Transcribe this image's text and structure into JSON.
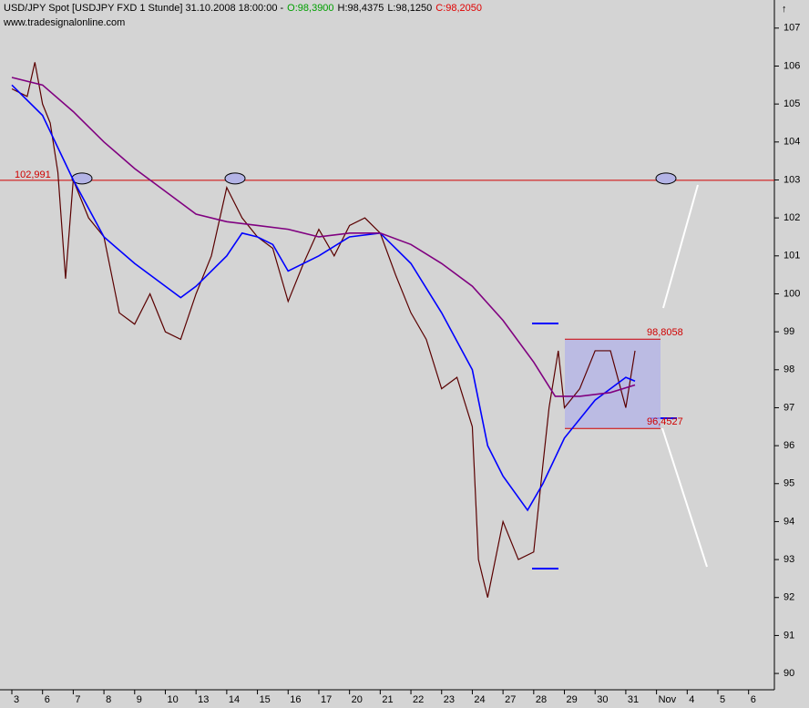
{
  "chart_data": {
    "type": "line",
    "header": {
      "symbol": "USD/JPY Spot [USDJPY FXD  1 Stunde] 31.10.2008 18:00:00 -",
      "open": "O:98,3900",
      "high": "H:98,4375",
      "low": "L:98,1250",
      "close": "C:98,2050",
      "source": "www.tradesignalonline.com"
    },
    "xlim": [
      -0.386,
      24.84
    ],
    "xticks": [
      {
        "value": 0,
        "label": "3"
      },
      {
        "value": 1,
        "label": "6"
      },
      {
        "value": 2,
        "label": "7"
      },
      {
        "value": 3,
        "label": "8"
      },
      {
        "value": 4,
        "label": "9"
      },
      {
        "value": 5,
        "label": "10"
      },
      {
        "value": 6,
        "label": "13"
      },
      {
        "value": 7,
        "label": "14"
      },
      {
        "value": 8,
        "label": "15"
      },
      {
        "value": 9,
        "label": "16"
      },
      {
        "value": 10,
        "label": "17"
      },
      {
        "value": 11,
        "label": "20"
      },
      {
        "value": 12,
        "label": "21"
      },
      {
        "value": 13,
        "label": "22"
      },
      {
        "value": 14,
        "label": "23"
      },
      {
        "value": 15,
        "label": "24"
      },
      {
        "value": 16,
        "label": "27"
      },
      {
        "value": 17,
        "label": "28"
      },
      {
        "value": 18,
        "label": "29"
      },
      {
        "value": 19,
        "label": "30"
      },
      {
        "value": 20,
        "label": "31"
      },
      {
        "value": 21,
        "label": "Nov"
      },
      {
        "value": 22,
        "label": "4"
      },
      {
        "value": 23,
        "label": "5"
      },
      {
        "value": 24,
        "label": "6"
      }
    ],
    "ylim": [
      89.57,
      107.74
    ],
    "yticks": [
      90,
      91,
      92,
      93,
      94,
      95,
      96,
      97,
      98,
      99,
      100,
      101,
      102,
      103,
      104,
      105,
      106,
      107
    ],
    "series": [
      {
        "color": "#5a0000",
        "x": [
          0,
          0.5,
          0.75,
          1,
          1.25,
          1.5,
          1.75,
          2,
          2.5,
          3,
          3.5,
          4,
          4.5,
          5,
          5.5,
          6,
          6.5,
          7,
          7.5,
          8,
          8.5,
          9,
          9.5,
          10,
          10.5,
          11,
          11.5,
          12,
          12.5,
          13,
          13.5,
          14,
          14.5,
          15,
          15.2,
          15.5,
          16,
          16.5,
          17,
          17.3,
          17.5,
          17.8,
          18,
          18.5,
          19,
          19.5,
          20,
          20.3
        ],
        "values": [
          105.4,
          105.2,
          106.1,
          105.0,
          104.5,
          103.2,
          100.4,
          103.0,
          102.0,
          101.5,
          99.5,
          99.2,
          100.0,
          99.0,
          98.8,
          100.0,
          101.0,
          102.8,
          102.0,
          101.5,
          101.2,
          99.8,
          100.8,
          101.7,
          101.0,
          101.8,
          102.0,
          101.6,
          100.5,
          99.5,
          98.8,
          97.5,
          97.8,
          96.5,
          93.0,
          92.0,
          94.0,
          93.0,
          93.2,
          95.5,
          97.0,
          98.5,
          97.0,
          97.5,
          98.5,
          98.5,
          97.0,
          98.5
        ]
      },
      {
        "color": "#0000ff",
        "x": [
          0,
          1,
          2,
          3,
          4,
          5,
          5.5,
          6,
          7,
          7.5,
          8,
          8.5,
          9,
          10,
          11,
          12,
          13,
          14,
          15,
          15.5,
          16,
          16.8,
          17.3,
          18,
          19,
          20,
          20.3
        ],
        "values": [
          105.5,
          104.7,
          103.0,
          101.5,
          100.8,
          100.2,
          99.9,
          100.2,
          101.0,
          101.6,
          101.5,
          101.3,
          100.6,
          101.0,
          101.5,
          101.6,
          100.8,
          99.5,
          98.0,
          96.0,
          95.2,
          94.3,
          95.0,
          96.2,
          97.2,
          97.8,
          97.7
        ]
      },
      {
        "color": "#800080",
        "x": [
          0,
          1,
          2,
          3,
          4,
          5,
          6,
          7,
          8,
          9,
          10,
          11,
          12,
          13,
          14,
          15,
          16,
          17,
          17.7,
          18.5,
          19.5,
          20.3
        ],
        "values": [
          105.7,
          105.5,
          104.8,
          104.0,
          103.3,
          102.7,
          102.1,
          101.9,
          101.8,
          101.7,
          101.5,
          101.6,
          101.6,
          101.3,
          100.8,
          100.2,
          99.3,
          98.2,
          97.3,
          97.3,
          97.4,
          97.6
        ]
      }
    ],
    "hline": {
      "value": 102.991,
      "label": "102,991",
      "color": "#d00000"
    },
    "box": {
      "top": {
        "value": 98.8058,
        "label": "98,8058"
      },
      "bottom": {
        "value": 96.4527,
        "label": "96,4527"
      },
      "color": "#d00000"
    }
  }
}
